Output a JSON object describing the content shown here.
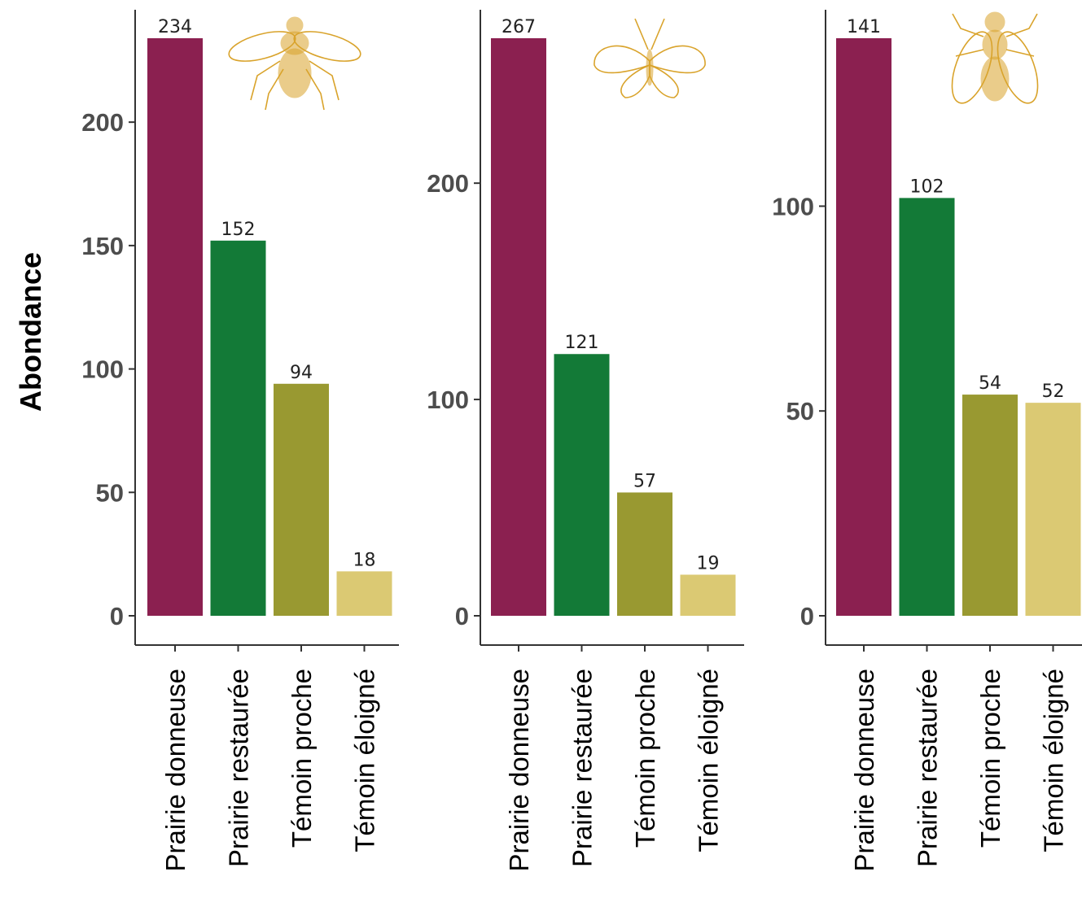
{
  "chart_data": {
    "type": "bar",
    "ylabel": "Abondance",
    "categories": [
      "Prairie donneuse",
      "Prairie restaurée",
      "Témoin proche",
      "Témoin éloigné"
    ],
    "colors": [
      "#8b2050",
      "#137a37",
      "#999931",
      "#dbc973"
    ],
    "panels": [
      {
        "icon": "bee-icon",
        "values": [
          234,
          152,
          94,
          18
        ],
        "ylim": [
          0,
          234
        ],
        "yticks": [
          0,
          50,
          100,
          150,
          200
        ]
      },
      {
        "icon": "butterfly-icon",
        "values": [
          267,
          121,
          57,
          19
        ],
        "ylim": [
          0,
          267
        ],
        "yticks": [
          0,
          100,
          200
        ]
      },
      {
        "icon": "fly-icon",
        "values": [
          141,
          102,
          54,
          52
        ],
        "ylim": [
          0,
          141
        ],
        "yticks": [
          0,
          50,
          100
        ]
      }
    ]
  }
}
